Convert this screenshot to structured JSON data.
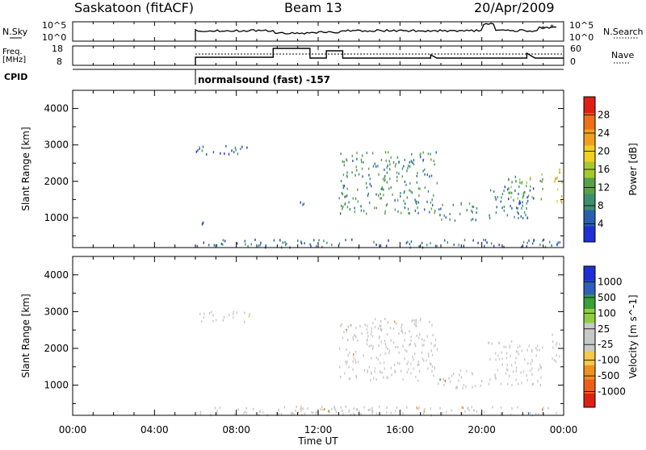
{
  "header": {
    "station": "Saskatoon (fitACF)",
    "beam": "Beam 13",
    "date": "20/Apr/2009"
  },
  "time_axis": {
    "ticks": [
      "00:00",
      "04:00",
      "08:00",
      "12:00",
      "16:00",
      "20:00",
      "00:00"
    ],
    "tick_hours": [
      0,
      4,
      8,
      12,
      16,
      20,
      24
    ],
    "label": "Time UT",
    "range_hours": [
      0,
      24
    ]
  },
  "strips": {
    "nsky_label": "N.Sky",
    "nsearch_label": "N.Search",
    "noise_ticks": [
      "10^5",
      "10^0"
    ],
    "noise_ticks_right": [
      "10^5",
      "10^0"
    ],
    "freq_label_top": "Freq.",
    "freq_label_bottom": "[MHz]",
    "freq_ticks": [
      "18",
      "8"
    ],
    "nave_label": "Nave",
    "nave_ticks": [
      "60",
      "0"
    ],
    "cpid_label": "CPID",
    "cpid_text": "normalsound (fast) -157"
  },
  "colors": {
    "power_scale": [
      "#1f2fd4",
      "#2a5fb0",
      "#3c8f6e",
      "#5aa04a",
      "#a6c930",
      "#f0d020",
      "#f0a020",
      "#ee6f17",
      "#dd1f14"
    ],
    "velocity_scale": [
      "#dd1f14",
      "#ee5f17",
      "#f09020",
      "#f5c84a",
      "#c8c8c8",
      "#c8c8c8",
      "#8fcf3f",
      "#3a9e3a",
      "#2f5fb8",
      "#1f2fd4"
    ],
    "ground_scatter": "#bdbdbd"
  },
  "chart_data": [
    {
      "type": "heatmap",
      "title": "Power",
      "ylabel": "Slant Range [km]",
      "xlabel": "",
      "x_range_hours": [
        0,
        24
      ],
      "ylim": [
        180,
        4500
      ],
      "y_ticks": [
        1000,
        2000,
        3000,
        4000
      ],
      "colorbar": {
        "label": "Power [dB]",
        "ticks": [
          "4",
          "8",
          "12",
          "16",
          "20",
          "24",
          "28"
        ],
        "range": [
          0,
          30
        ]
      },
      "data_start_hour": 6.0,
      "regions": [
        {
          "hours": [
            6.0,
            8.7
          ],
          "range_km": [
            2700,
            3000
          ],
          "power_db": 5
        },
        {
          "hours": [
            6.1,
            6.6
          ],
          "range_km": [
            780,
            1000
          ],
          "power_db": 4
        },
        {
          "hours": [
            11.1,
            11.6
          ],
          "range_km": [
            1250,
            1450
          ],
          "power_db": 4
        },
        {
          "hours": [
            13.0,
            17.8
          ],
          "range_km": [
            1100,
            2800
          ],
          "power_db": 9
        },
        {
          "hours": [
            17.8,
            19.8
          ],
          "range_km": [
            900,
            1400
          ],
          "power_db": 8
        },
        {
          "hours": [
            20.3,
            22.6
          ],
          "range_km": [
            900,
            1900
          ],
          "power_db": 6
        },
        {
          "hours": [
            21.2,
            23.0
          ],
          "range_km": [
            1500,
            2200
          ],
          "power_db": 12
        },
        {
          "hours": [
            23.4,
            23.9
          ],
          "range_km": [
            1400,
            2400
          ],
          "power_db": 18
        },
        {
          "hours": [
            6.0,
            24.0
          ],
          "range_km": [
            180,
            400
          ],
          "power_db": 6
        }
      ]
    },
    {
      "type": "heatmap",
      "title": "Velocity",
      "ylabel": "Slant Range [km]",
      "xlabel": "Time UT",
      "x_range_hours": [
        0,
        24
      ],
      "ylim": [
        180,
        4500
      ],
      "y_ticks": [
        1000,
        2000,
        3000,
        4000
      ],
      "colorbar": {
        "label": "Velocity [m s^-1]",
        "ticks": [
          "1000",
          "500",
          "100",
          "25",
          "-25",
          "-100",
          "-500",
          "-1000"
        ],
        "range": [
          -1000,
          1000
        ]
      },
      "data_start_hour": 6.0,
      "regions": [
        {
          "hours": [
            6.0,
            8.7
          ],
          "range_km": [
            2700,
            3000
          ],
          "velocity_ms": 0
        },
        {
          "hours": [
            13.0,
            17.8
          ],
          "range_km": [
            1100,
            2800
          ],
          "velocity_ms": 0
        },
        {
          "hours": [
            17.8,
            20.0
          ],
          "range_km": [
            900,
            1400
          ],
          "velocity_ms": 0
        },
        {
          "hours": [
            20.3,
            23.0
          ],
          "range_km": [
            1000,
            2200
          ],
          "velocity_ms": 0
        },
        {
          "hours": [
            23.4,
            23.9
          ],
          "range_km": [
            1500,
            2400
          ],
          "velocity_ms": -60
        },
        {
          "hours": [
            6.0,
            24.0
          ],
          "range_km": [
            180,
            420
          ],
          "velocity_ms": 60
        },
        {
          "hours": [
            11.0,
            15.0
          ],
          "range_km": [
            180,
            420
          ],
          "velocity_ms": -120
        }
      ]
    }
  ]
}
